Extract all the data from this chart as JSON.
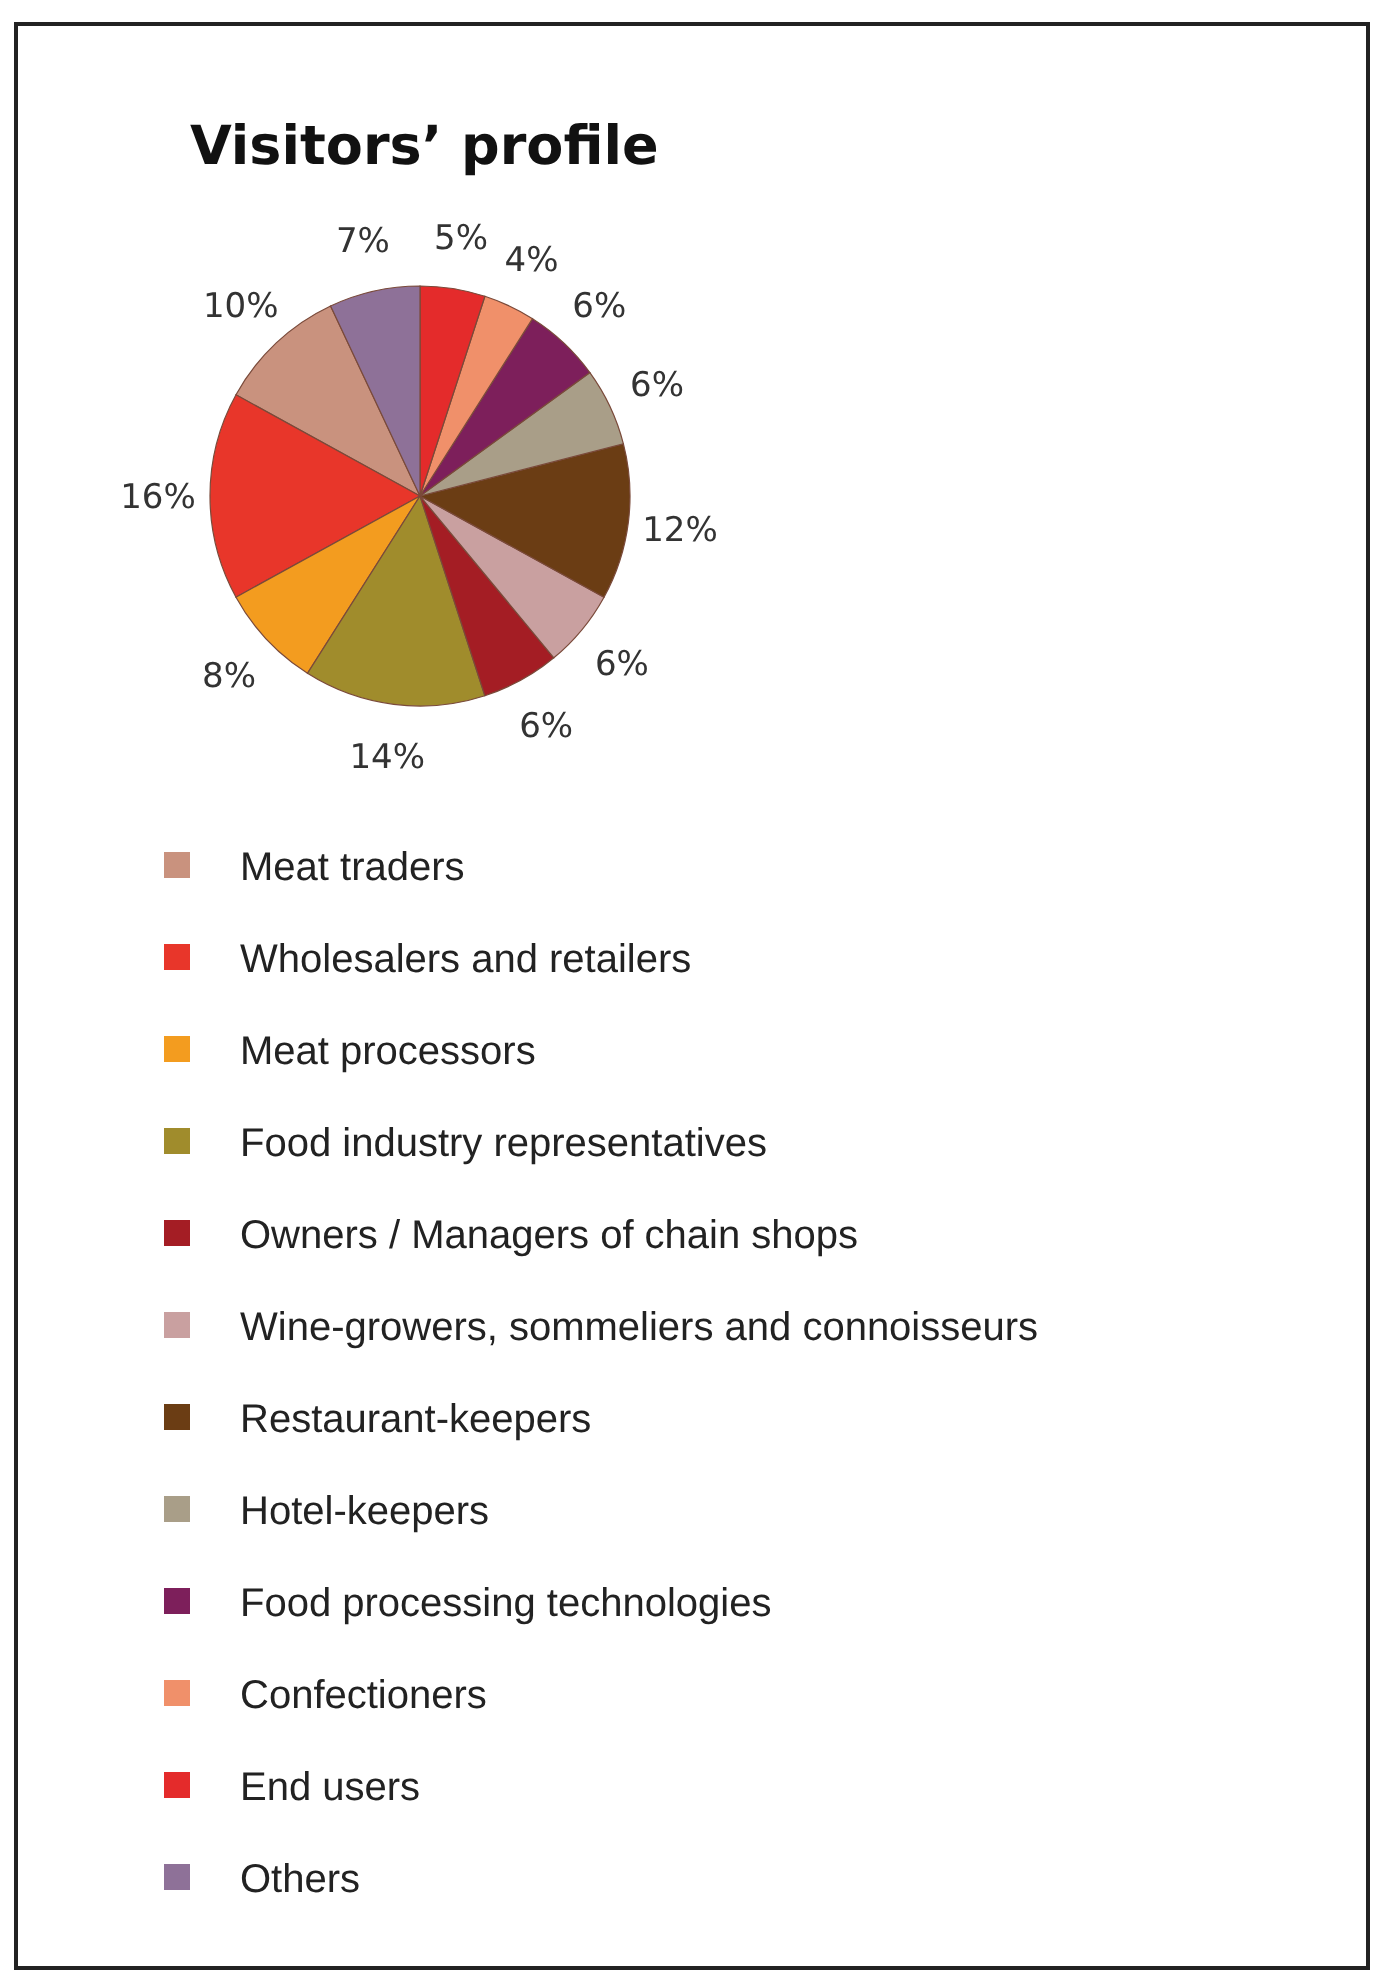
{
  "chart_data": {
    "type": "pie",
    "title": "Visitors’ profile",
    "categories": [
      "Meat traders",
      "Wholesalers and retailers",
      "Meat processors",
      "Food industry representatives",
      "Owners / Managers of chain shops",
      "Wine-growers, sommeliers and connoisseurs",
      "Restaurant-keepers",
      "Hotel-keepers",
      "Food processing technologies",
      "Confectioners",
      "End users",
      "Others"
    ],
    "values": [
      10,
      16,
      8,
      14,
      6,
      6,
      12,
      6,
      6,
      4,
      5,
      7
    ],
    "value_labels": [
      "10%",
      "16%",
      "8%",
      "14%",
      "6%",
      "6%",
      "12%",
      "6%",
      "6%",
      "4%",
      "5%",
      "7%"
    ],
    "colors": [
      "#c9927e",
      "#e8362a",
      "#f39c1f",
      "#a08c2c",
      "#a41d24",
      "#c9a0a0",
      "#6b3d14",
      "#a99e88",
      "#7d1f5b",
      "#f0906a",
      "#e42b2b",
      "#8e7198"
    ],
    "legend": "bottom"
  }
}
